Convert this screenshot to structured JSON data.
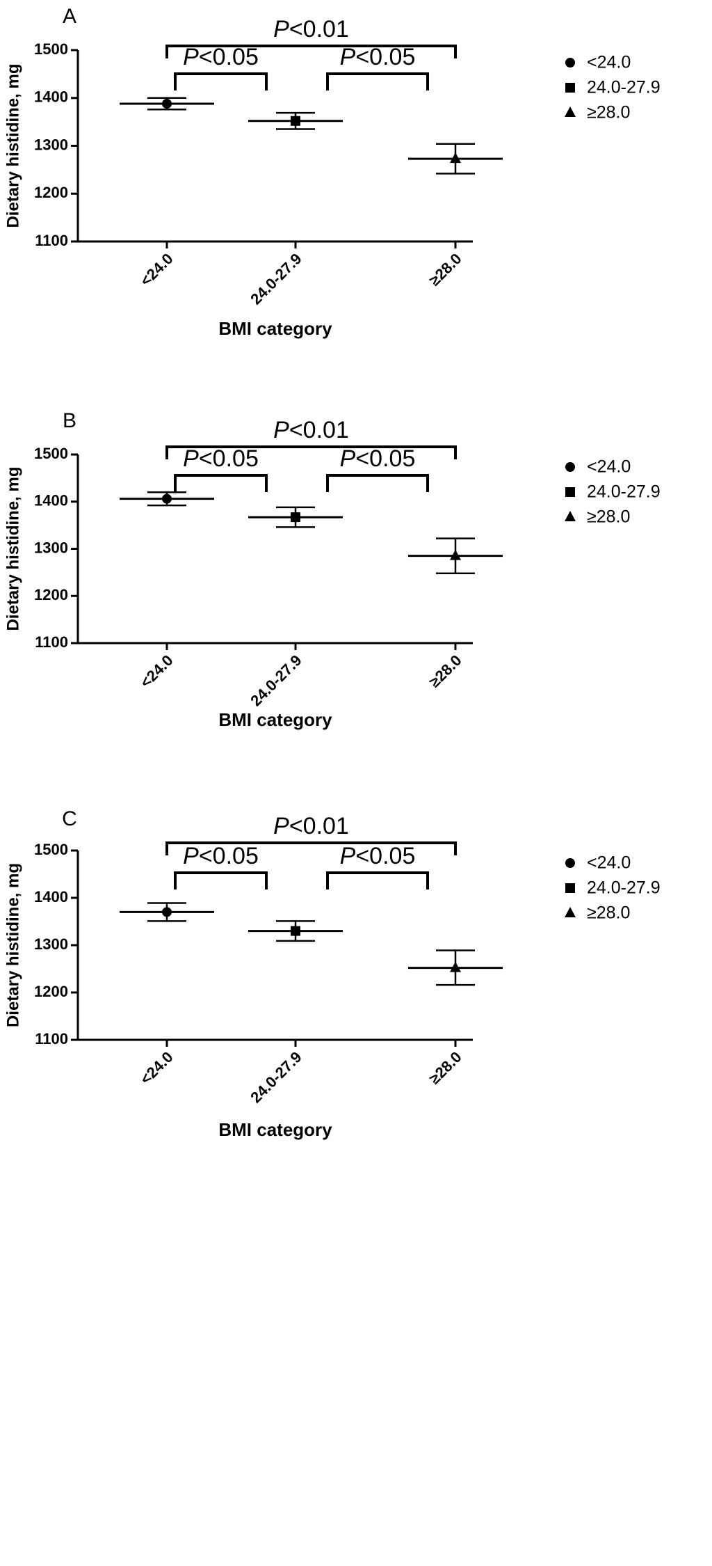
{
  "chart_data": [
    {
      "type": "scatter",
      "panel": "A",
      "title": "",
      "xlabel": "BMI category",
      "ylabel": "Dietary histidine, mg",
      "ylim": [
        1100,
        1500
      ],
      "yticks": [
        1100,
        1200,
        1300,
        1400,
        1500
      ],
      "categories": [
        "<24.0",
        "24.0-27.9",
        "≥28.0"
      ],
      "markers": [
        "circle",
        "square",
        "triangle"
      ],
      "means": [
        1388,
        1352,
        1273
      ],
      "err_low": [
        1376,
        1335,
        1242
      ],
      "err_high": [
        1400,
        1369,
        1304
      ],
      "legend": {
        "position": "top-right",
        "entries": [
          "<24.0",
          "24.0-27.9",
          "≥28.0"
        ]
      },
      "brackets": [
        {
          "from": 0,
          "to": 2,
          "label_prefix": "P",
          "label_rest": "<0.01",
          "level": "outer"
        },
        {
          "from": 0,
          "to": 1,
          "label_prefix": "P",
          "label_rest": "<0.05",
          "level": "inner"
        },
        {
          "from": 1,
          "to": 2,
          "label_prefix": "P",
          "label_rest": "<0.05",
          "level": "inner"
        }
      ]
    },
    {
      "type": "scatter",
      "panel": "B",
      "title": "",
      "xlabel": "BMI category",
      "ylabel": "Dietary histidine, mg",
      "ylim": [
        1100,
        1500
      ],
      "yticks": [
        1100,
        1200,
        1300,
        1400,
        1500
      ],
      "categories": [
        "<24.0",
        "24.0-27.9",
        "≥28.0"
      ],
      "markers": [
        "circle",
        "square",
        "triangle"
      ],
      "means": [
        1406,
        1367,
        1285
      ],
      "err_low": [
        1392,
        1346,
        1248
      ],
      "err_high": [
        1420,
        1388,
        1322
      ],
      "legend": {
        "position": "top-right",
        "entries": [
          "<24.0",
          "24.0-27.9",
          "≥28.0"
        ]
      },
      "brackets": [
        {
          "from": 0,
          "to": 2,
          "label_prefix": "P",
          "label_rest": "<0.01",
          "level": "outer"
        },
        {
          "from": 0,
          "to": 1,
          "label_prefix": "P",
          "label_rest": "<0.05",
          "level": "inner"
        },
        {
          "from": 1,
          "to": 2,
          "label_prefix": "P",
          "label_rest": "<0.05",
          "level": "inner"
        }
      ]
    },
    {
      "type": "scatter",
      "panel": "C",
      "title": "",
      "xlabel": "BMI category",
      "ylabel": "Dietary histidine, mg",
      "ylim": [
        1100,
        1500
      ],
      "yticks": [
        1100,
        1200,
        1300,
        1400,
        1500
      ],
      "categories": [
        "<24.0",
        "24.0-27.9",
        "≥28.0"
      ],
      "markers": [
        "circle",
        "square",
        "triangle"
      ],
      "means": [
        1370,
        1330,
        1252
      ],
      "err_low": [
        1351,
        1309,
        1216
      ],
      "err_high": [
        1389,
        1351,
        1289
      ],
      "legend": {
        "position": "top-right",
        "entries": [
          "<24.0",
          "24.0-27.9",
          "≥28.0"
        ]
      },
      "brackets": [
        {
          "from": 0,
          "to": 2,
          "label_prefix": "P",
          "label_rest": "<0.01",
          "level": "outer"
        },
        {
          "from": 0,
          "to": 1,
          "label_prefix": "P",
          "label_rest": "<0.05",
          "level": "inner"
        },
        {
          "from": 1,
          "to": 2,
          "label_prefix": "P",
          "label_rest": "<0.05",
          "level": "inner"
        }
      ]
    }
  ]
}
